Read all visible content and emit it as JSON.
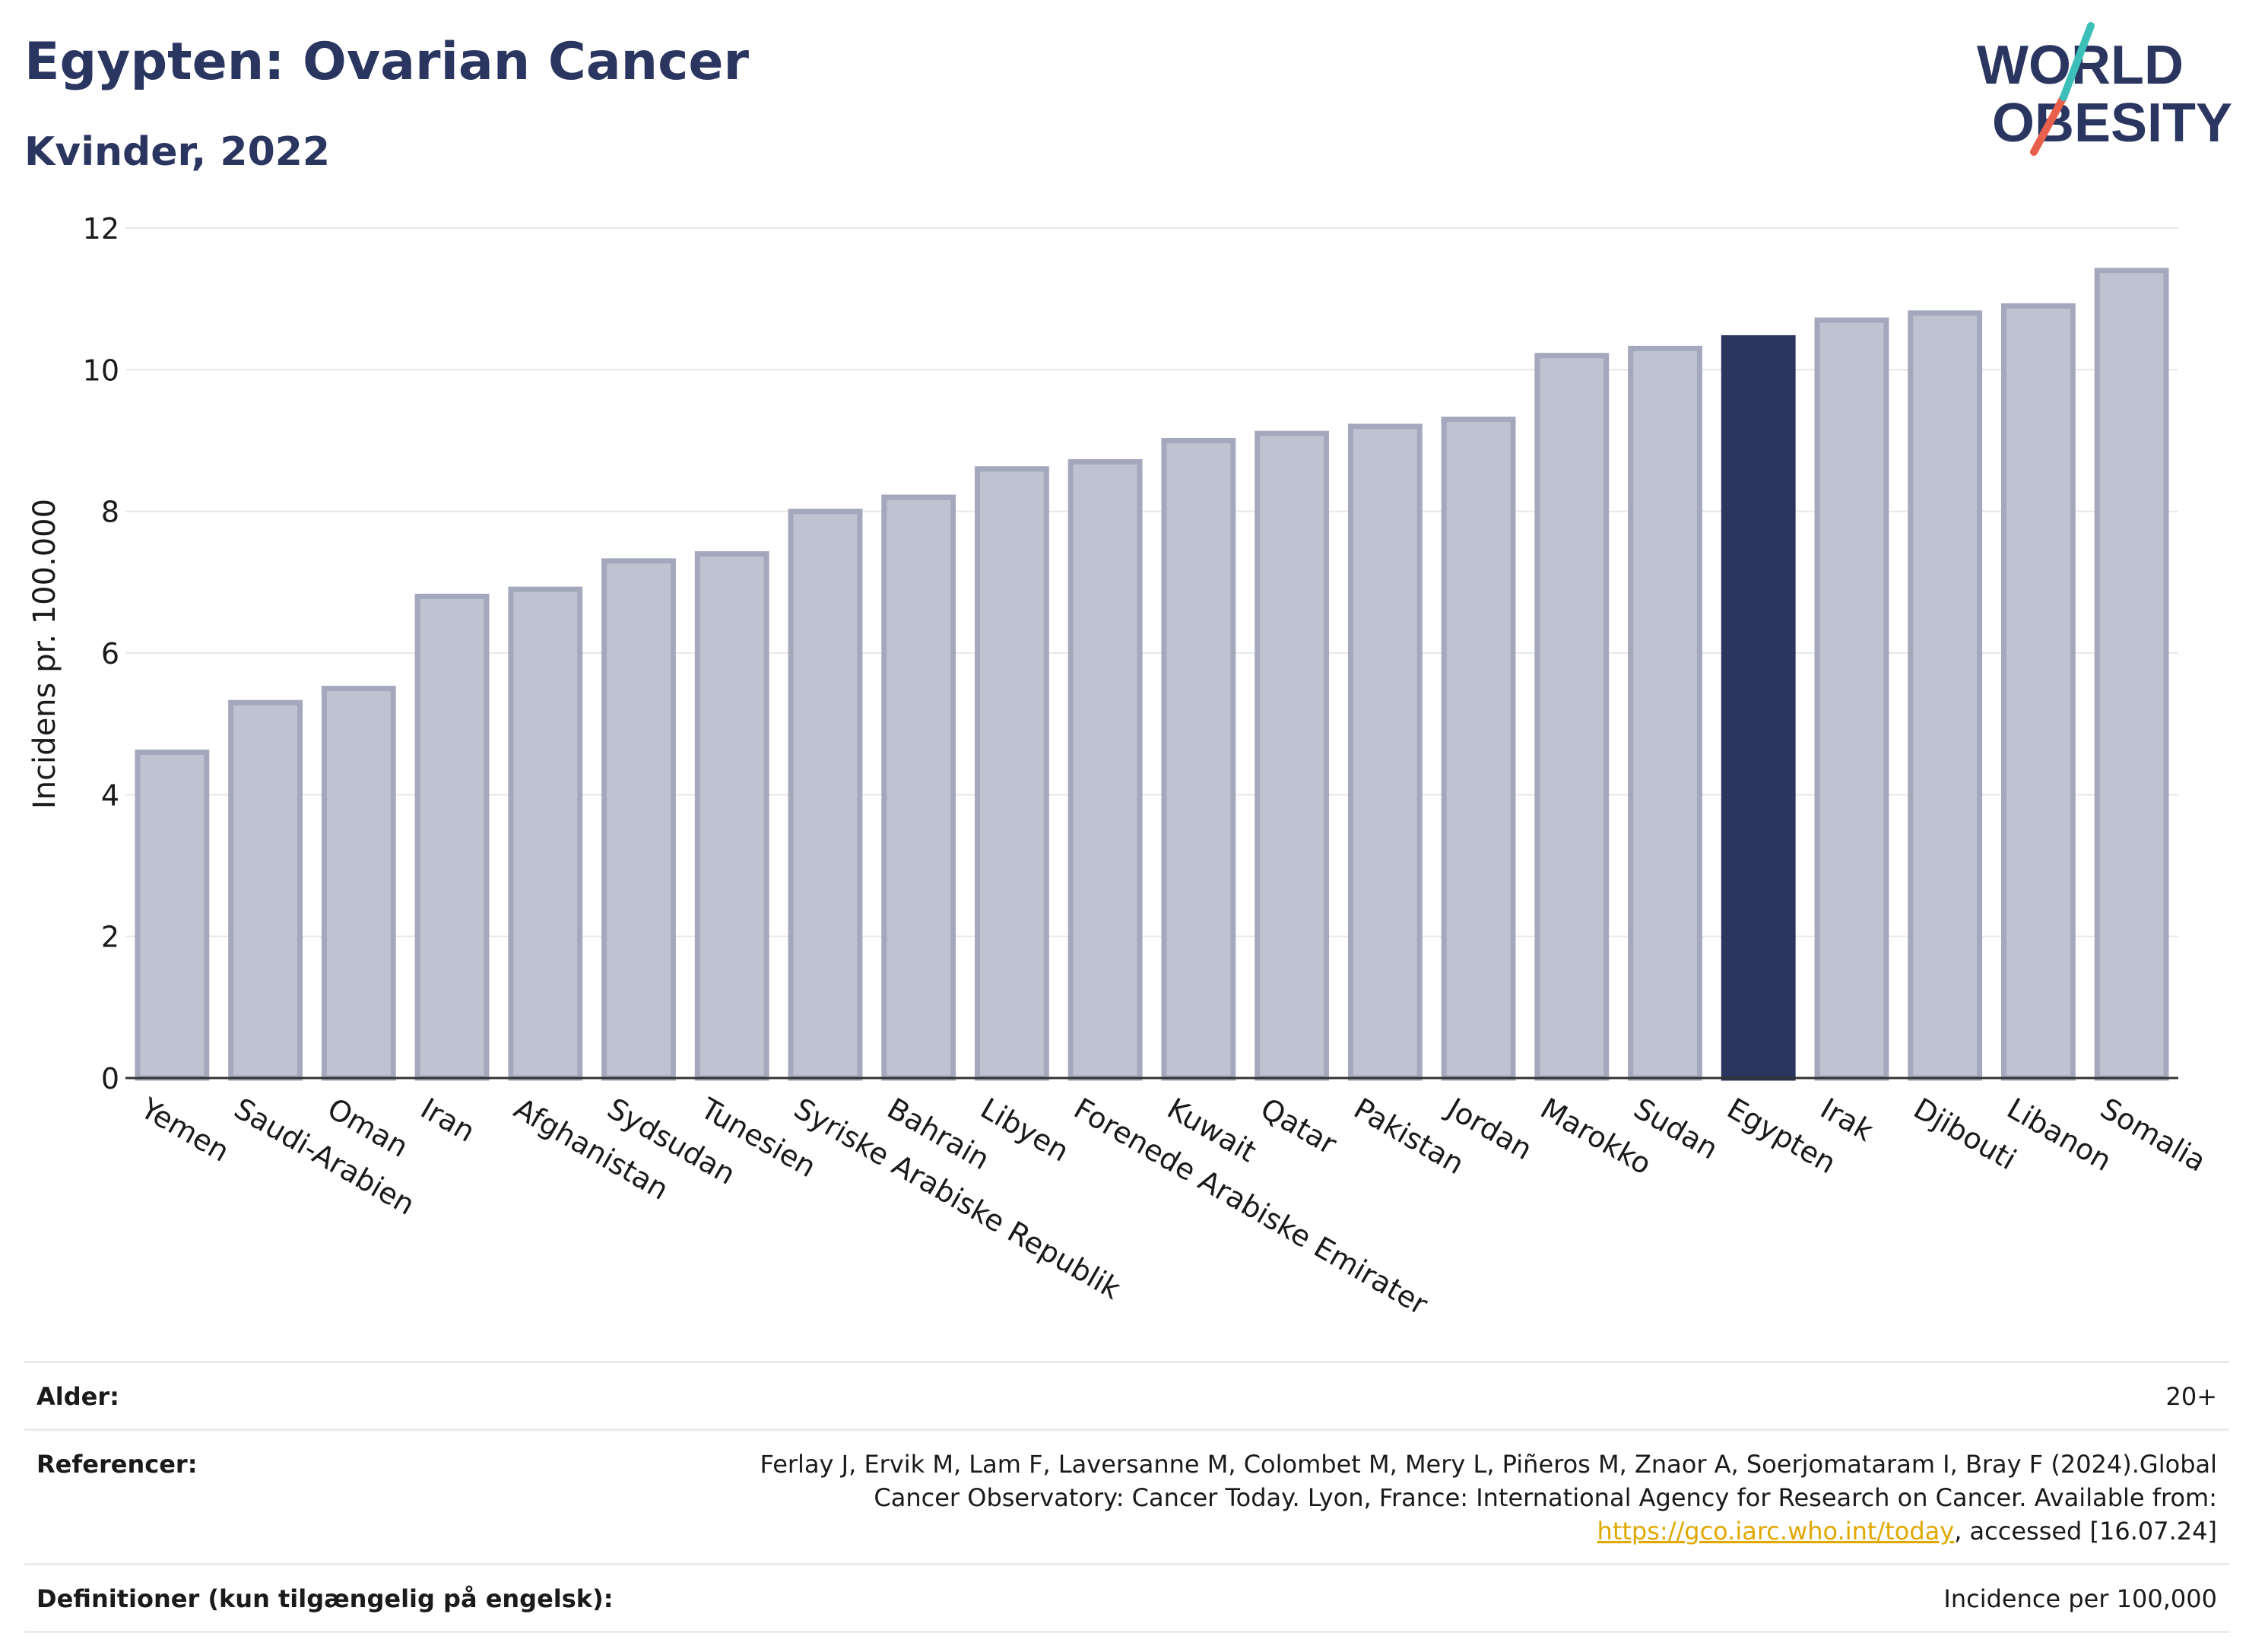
{
  "header": {
    "title": "Egypten: Ovarian Cancer",
    "subtitle": "Kvinder, 2022"
  },
  "logo": {
    "line1": "WORLD",
    "line2": "OBESITY",
    "colors": {
      "text": "#2a3560",
      "slash_teal": "#3bbfb8",
      "slash_red": "#e8604c"
    }
  },
  "chart_data": {
    "type": "bar",
    "categories": [
      "Yemen",
      "Saudi-Arabien",
      "Oman",
      "Iran",
      "Afghanistan",
      "Sydsudan",
      "Tunesien",
      "Syriske Arabiske Republik",
      "Bahrain",
      "Libyen",
      "Forenede Arabiske Emirater",
      "Kuwait",
      "Qatar",
      "Pakistan",
      "Jordan",
      "Marokko",
      "Sudan",
      "Egypten",
      "Irak",
      "Djibouti",
      "Libanon",
      "Somalia"
    ],
    "values": [
      4.6,
      5.3,
      5.5,
      6.8,
      6.9,
      7.3,
      7.4,
      8.0,
      8.2,
      8.6,
      8.7,
      9.0,
      9.1,
      9.2,
      9.3,
      10.2,
      10.3,
      10.45,
      10.7,
      10.8,
      10.9,
      11.4
    ],
    "highlight": "Egypten",
    "ylabel": "Incidens pr. 100.000",
    "xlabel": "",
    "ylim": [
      0,
      12
    ],
    "yticks": [
      0,
      2,
      4,
      6,
      8,
      10,
      12
    ],
    "grid": true,
    "colors": {
      "bar": "#bfc2d0",
      "bar_border": "#a4a8bc",
      "highlight": "#2a3560"
    }
  },
  "info": {
    "age_label": "Alder:",
    "age_value": "20+",
    "references_label": "Referencer:",
    "references_text": "Ferlay J, Ervik M, Lam F, Laversanne M, Colombet M, Mery L, Piñeros M, Znaor A, Soerjomataram I, Bray F (2024).Global Cancer Observatory: Cancer Today. Lyon, France: International Agency for Research on Cancer. Available from: ",
    "references_link": "https://gco.iarc.who.int/today",
    "references_tail": ", accessed [16.07.24]",
    "definitions_label": "Definitioner (kun tilgængelig på engelsk):",
    "definitions_value": "Incidence per 100,000"
  }
}
